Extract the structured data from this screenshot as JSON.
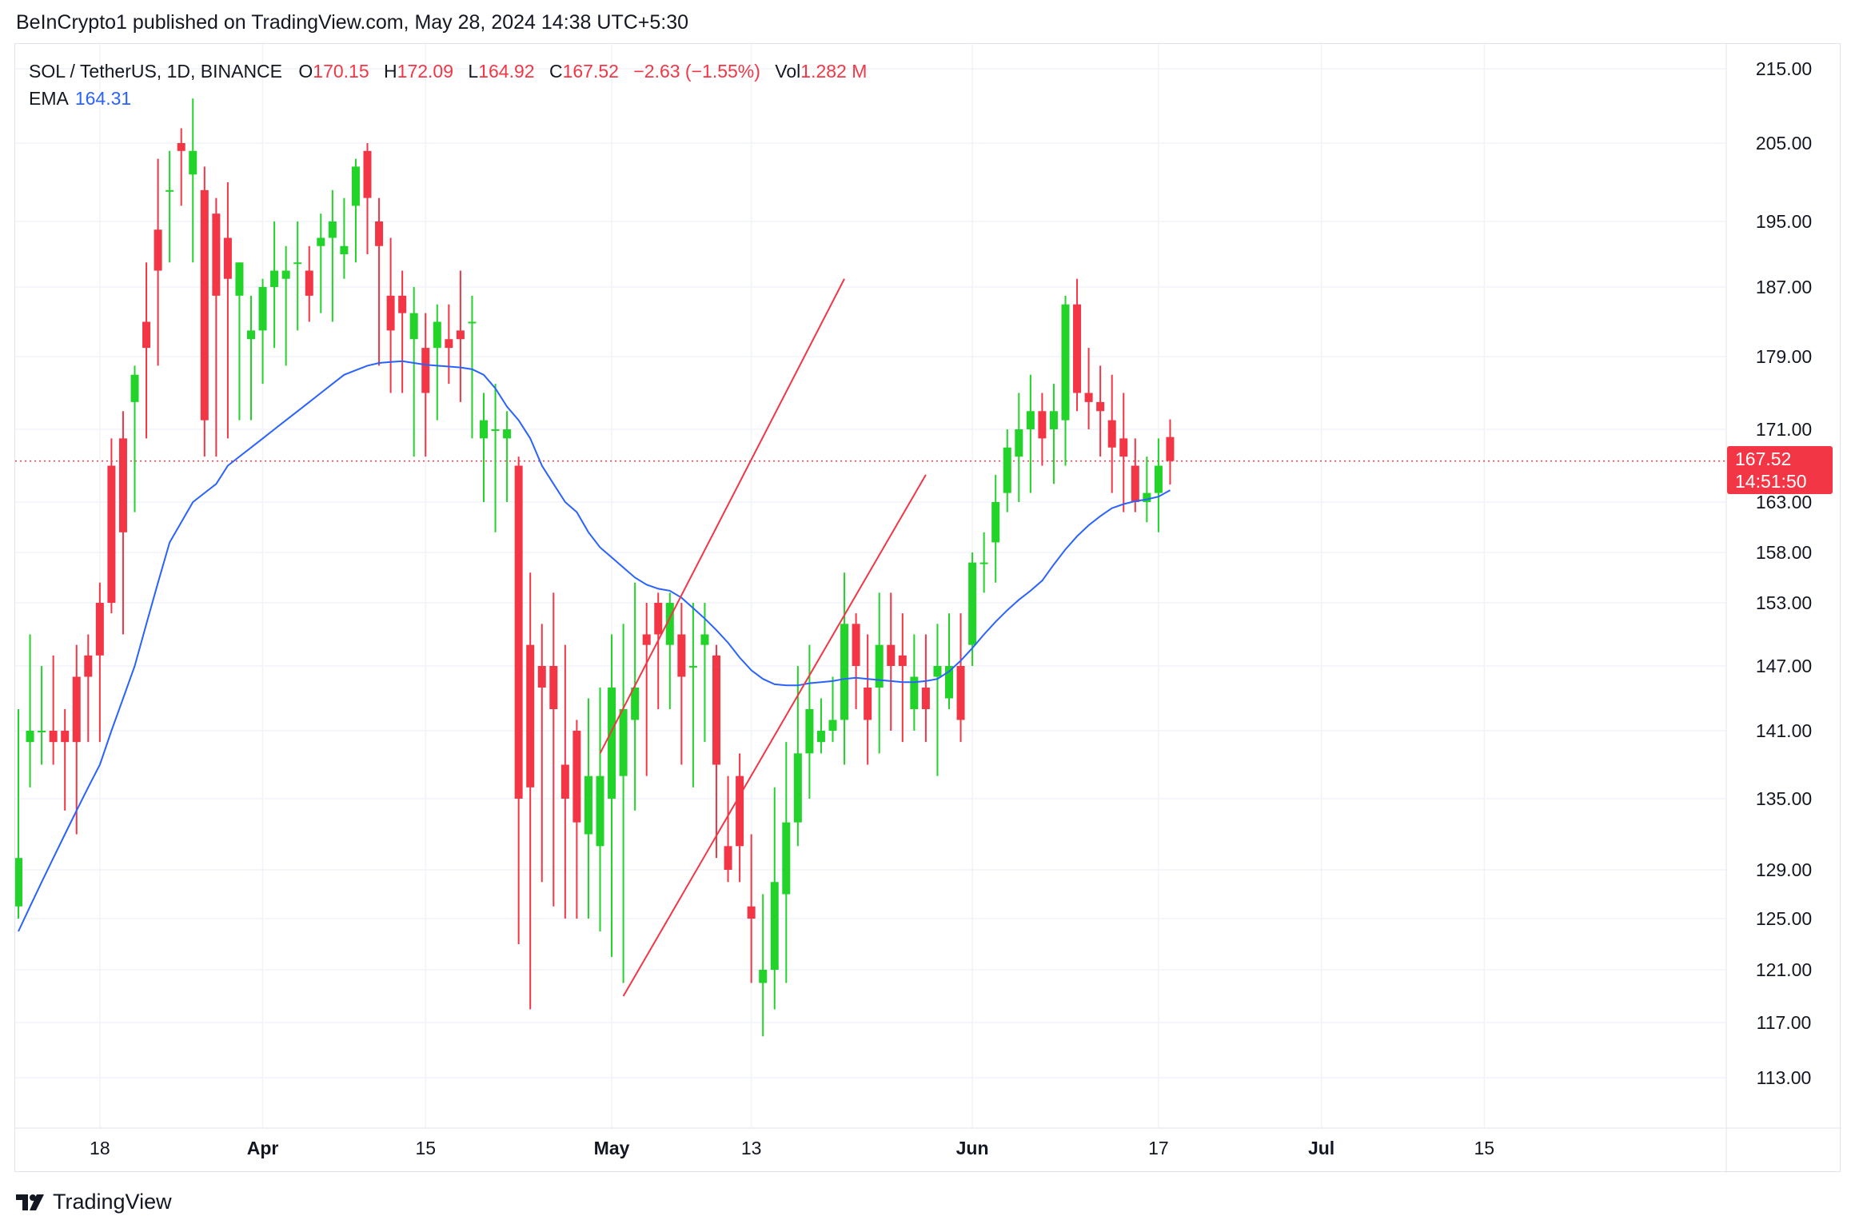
{
  "publisher": "BeInCrypto1 published on TradingView.com, May 28, 2024 14:38 UTC+5:30",
  "legend": {
    "symbol": "SOL / TetherUS, 1D, BINANCE",
    "open_label": "O",
    "open": "170.15",
    "high_label": "H",
    "high": "172.09",
    "low_label": "L",
    "low": "164.92",
    "close_label": "C",
    "close": "167.52",
    "change": "−2.63 (−1.55%)",
    "vol_label": "Vol",
    "vol": "1.282 M",
    "ema_label": "EMA",
    "ema": "164.31"
  },
  "price_badge": {
    "price": "167.52",
    "countdown": "14:51:50"
  },
  "footer": {
    "brand": "TradingView"
  },
  "colors": {
    "up": "#22d32a",
    "down": "#f23645",
    "ema": "#2962ff",
    "grid": "#f0f3fa",
    "trend": "#f23645"
  },
  "chart_data": {
    "type": "candlestick",
    "y_ticks": [
      215,
      205,
      195,
      187,
      179,
      171,
      163,
      158,
      153,
      147,
      141,
      135,
      129,
      125,
      121,
      117,
      113
    ],
    "x_ticks": [
      {
        "label": "18",
        "day": 7
      },
      {
        "label": "Apr",
        "day": 21
      },
      {
        "label": "15",
        "day": 35
      },
      {
        "label": "May",
        "day": 51
      },
      {
        "label": "13",
        "day": 63
      },
      {
        "label": "Jun",
        "day": 82
      },
      {
        "label": "17",
        "day": 98
      },
      {
        "label": "Jul",
        "day": 112
      },
      {
        "label": "15",
        "day": 126
      }
    ],
    "last_price": 167.52,
    "candles": [
      [
        126,
        143,
        125,
        130
      ],
      [
        140,
        150,
        136,
        141
      ],
      [
        141,
        147,
        138,
        141
      ],
      [
        141,
        148,
        138,
        140
      ],
      [
        141,
        143,
        134,
        140
      ],
      [
        146,
        149,
        132,
        140
      ],
      [
        148,
        150,
        140,
        146
      ],
      [
        153,
        155,
        140,
        148
      ],
      [
        167,
        170,
        152,
        153
      ],
      [
        170,
        173,
        150,
        160
      ],
      [
        174,
        178,
        162,
        177
      ],
      [
        183,
        190,
        170,
        180
      ],
      [
        194,
        203,
        178,
        189
      ],
      [
        199,
        204,
        190,
        199
      ],
      [
        205,
        207,
        197,
        204
      ],
      [
        201,
        211,
        190,
        204
      ],
      [
        199,
        202,
        168,
        172
      ],
      [
        196,
        198,
        168,
        186
      ],
      [
        193,
        200,
        170,
        188
      ],
      [
        186,
        190,
        172,
        190
      ],
      [
        181,
        186,
        172,
        182
      ],
      [
        182,
        188,
        176,
        187
      ],
      [
        187,
        195,
        180,
        189
      ],
      [
        188,
        192,
        178,
        189
      ],
      [
        190,
        195,
        182,
        190
      ],
      [
        189,
        192,
        183,
        186
      ],
      [
        192,
        196,
        184,
        193
      ],
      [
        193,
        199,
        183,
        195
      ],
      [
        191,
        198,
        188,
        192
      ],
      [
        197,
        203,
        190,
        202
      ],
      [
        204,
        205,
        191,
        198
      ],
      [
        195,
        198,
        178,
        192
      ],
      [
        186,
        193,
        175,
        182
      ],
      [
        186,
        189,
        175,
        184
      ],
      [
        181,
        187,
        168,
        184
      ],
      [
        180,
        184,
        168,
        175
      ],
      [
        180,
        185,
        172,
        183
      ],
      [
        181,
        185,
        176,
        180
      ],
      [
        182,
        189,
        174,
        181
      ],
      [
        183,
        186,
        170,
        183
      ],
      [
        170,
        175,
        163,
        172
      ],
      [
        171,
        176,
        160,
        171
      ],
      [
        170,
        173,
        163,
        171
      ],
      [
        167,
        168,
        123,
        135
      ],
      [
        149,
        156,
        118,
        136
      ],
      [
        147,
        151,
        128,
        145
      ],
      [
        147,
        154,
        126,
        143
      ],
      [
        138,
        149,
        125,
        135
      ],
      [
        141,
        142,
        125,
        133
      ],
      [
        132,
        144,
        125,
        137
      ],
      [
        131,
        145,
        124,
        137
      ],
      [
        135,
        150,
        122,
        145
      ],
      [
        137,
        151,
        120,
        143
      ],
      [
        142,
        155,
        134,
        145
      ],
      [
        150,
        153,
        137,
        149
      ],
      [
        153,
        154,
        143,
        150
      ],
      [
        149,
        154,
        143,
        153
      ],
      [
        150,
        153,
        138,
        146
      ],
      [
        147,
        153,
        136,
        147
      ],
      [
        149,
        153,
        140,
        150
      ],
      [
        148,
        149,
        130,
        138
      ],
      [
        131,
        137,
        128,
        129
      ],
      [
        137,
        139,
        128,
        131
      ],
      [
        126,
        132,
        120,
        125
      ],
      [
        120,
        127,
        116,
        121
      ],
      [
        121,
        136,
        118,
        128
      ],
      [
        127,
        140,
        120,
        133
      ],
      [
        133,
        147,
        131,
        139
      ],
      [
        139,
        149,
        135,
        143
      ],
      [
        140,
        144,
        139,
        141
      ],
      [
        141,
        146,
        140,
        142
      ],
      [
        142,
        156,
        138,
        151
      ],
      [
        151,
        152,
        143,
        147
      ],
      [
        145,
        150,
        138,
        142
      ],
      [
        145,
        154,
        139,
        149
      ],
      [
        149,
        154,
        141,
        147
      ],
      [
        148,
        152,
        140,
        147
      ],
      [
        143,
        150,
        141,
        146
      ],
      [
        145,
        150,
        140,
        143
      ],
      [
        146,
        151,
        137,
        147
      ],
      [
        144,
        152,
        143,
        147
      ],
      [
        147,
        152,
        140,
        142
      ],
      [
        149,
        158,
        147,
        157
      ],
      [
        157,
        160,
        154,
        157
      ],
      [
        159,
        166,
        155,
        163
      ],
      [
        164,
        171,
        162,
        169
      ],
      [
        168,
        175,
        163,
        171
      ],
      [
        171,
        177,
        164,
        173
      ],
      [
        173,
        175,
        167,
        170
      ],
      [
        171,
        176,
        165,
        173
      ],
      [
        172,
        186,
        167,
        185
      ],
      [
        185,
        188,
        173,
        175
      ],
      [
        175,
        180,
        171,
        174
      ],
      [
        174,
        178,
        168,
        173
      ],
      [
        172,
        177,
        164,
        169
      ],
      [
        170,
        175,
        162,
        168
      ],
      [
        167,
        170,
        162,
        163
      ],
      [
        163,
        168,
        161,
        164
      ],
      [
        164,
        170,
        160,
        167
      ],
      [
        170.15,
        172.09,
        164.92,
        167.52
      ]
    ],
    "ema": [
      124,
      126,
      128,
      130,
      132,
      134,
      136,
      138,
      141,
      144,
      147,
      151,
      155,
      159,
      161,
      163,
      164,
      165,
      167,
      168,
      169,
      170,
      171,
      172,
      173,
      174,
      175,
      176,
      177,
      177.5,
      178,
      178.3,
      178.4,
      178.5,
      178.3,
      178.1,
      178,
      177.9,
      177.8,
      177.6,
      177,
      175.5,
      173.5,
      172,
      170,
      167,
      165,
      163,
      162,
      160,
      158.5,
      157.5,
      156.5,
      155.5,
      154.8,
      154.4,
      154.2,
      153.5,
      152.5,
      151.5,
      150.4,
      149.2,
      147.8,
      146.6,
      145.8,
      145.3,
      145.2,
      145.2,
      145.4,
      145.5,
      145.6,
      145.8,
      145.9,
      145.8,
      145.7,
      145.6,
      145.5,
      145.5,
      145.6,
      145.8,
      146.5,
      147.5,
      148.7,
      150,
      151.2,
      152.3,
      153.3,
      154.2,
      155.2,
      156.8,
      158.3,
      159.6,
      160.7,
      161.6,
      162.4,
      162.8,
      163.1,
      163.3,
      163.6,
      164.31
    ],
    "trendlines": [
      {
        "name": "channel-top",
        "from": {
          "day": 50,
          "price": 139
        },
        "to": {
          "day": 71,
          "price": 188
        }
      },
      {
        "name": "channel-bottom",
        "from": {
          "day": 52,
          "price": 119
        },
        "to": {
          "day": 78,
          "price": 166
        }
      }
    ]
  }
}
